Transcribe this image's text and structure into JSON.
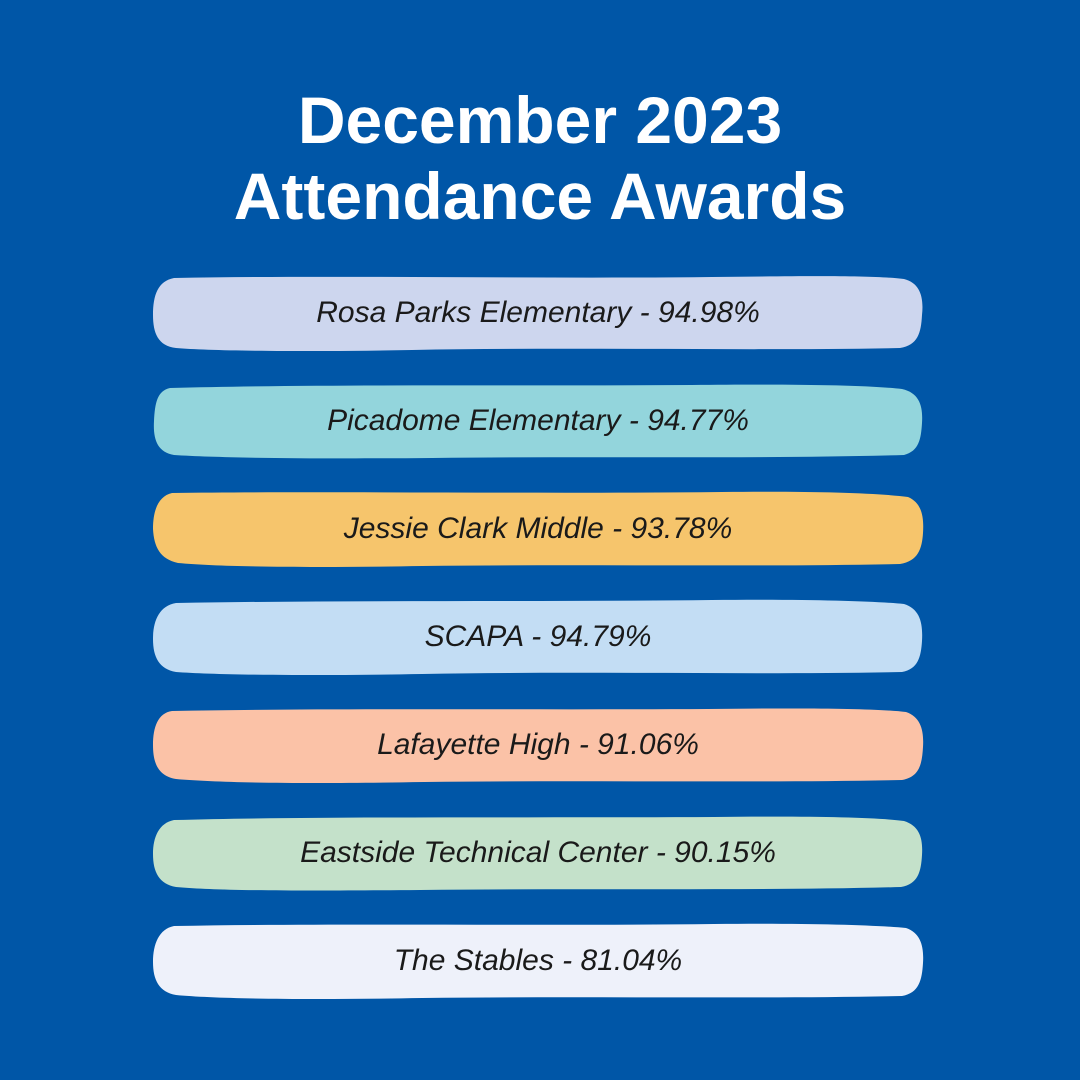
{
  "title": {
    "line1": "December 2023",
    "line2": "Attendance Awards"
  },
  "awards": [
    {
      "label": "Rosa Parks Elementary - 94.98%",
      "school": "Rosa Parks Elementary",
      "rate": 94.98,
      "color": "#cdd6ee"
    },
    {
      "label": "Picadome Elementary - 94.77%",
      "school": "Picadome Elementary",
      "rate": 94.77,
      "color": "#93d5dc"
    },
    {
      "label": "Jessie Clark Middle - 93.78%",
      "school": "Jessie Clark Middle",
      "rate": 93.78,
      "color": "#f6c56c"
    },
    {
      "label": "SCAPA - 94.79%",
      "school": "SCAPA",
      "rate": 94.79,
      "color": "#c3ddf4"
    },
    {
      "label": "Lafayette High - 91.06%",
      "school": "Lafayette High",
      "rate": 91.06,
      "color": "#fbc2a7"
    },
    {
      "label": "Eastside Technical Center - 90.15%",
      "school": "Eastside Technical Center",
      "rate": 90.15,
      "color": "#c4e1ca"
    },
    {
      "label": "The Stables - 81.04%",
      "school": "The Stables",
      "rate": 81.04,
      "color": "#eef1fa"
    }
  ],
  "colors": {
    "background": "#0056a7",
    "title_text": "#ffffff",
    "award_text": "#1a1a1a"
  }
}
